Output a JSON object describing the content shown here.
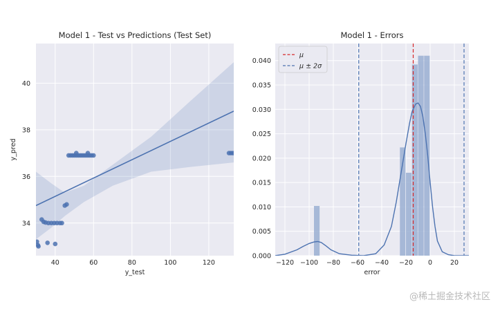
{
  "watermark": "@稀土掘金技术社区",
  "chart_data": [
    {
      "type": "scatter",
      "title": "Model 1 - Test vs Predictions (Test Set)",
      "xlabel": "y_test",
      "ylabel": "y_pred",
      "xlim": [
        30,
        133
      ],
      "ylim": [
        32.6,
        41.7
      ],
      "xticks": [
        40,
        60,
        80,
        100,
        120
      ],
      "yticks": [
        34,
        36,
        38,
        40
      ],
      "grid": true,
      "background": "#eaeaf2",
      "color": "#4c72b0",
      "regression": {
        "x": [
          30,
          133
        ],
        "y": [
          34.75,
          38.8
        ]
      },
      "ci_band": {
        "x": [
          30,
          38,
          45,
          55,
          70,
          90,
          110,
          133
        ],
        "lower": [
          33.3,
          33.8,
          34.3,
          34.9,
          35.6,
          36.2,
          36.4,
          36.6
        ],
        "upper": [
          36.2,
          35.7,
          35.3,
          35.6,
          36.5,
          37.7,
          39.2,
          40.9
        ]
      },
      "points": {
        "x": [
          30.5,
          31,
          31.3,
          33,
          34,
          35,
          36.5,
          38,
          39.5,
          41,
          42.5,
          43.5,
          36,
          40,
          45,
          46,
          47,
          48,
          49,
          50,
          51,
          52,
          53,
          54,
          55,
          56,
          57,
          58,
          59,
          60,
          51,
          57,
          130.5,
          131.5,
          132.5
        ],
        "y": [
          33.2,
          33.05,
          33.0,
          34.15,
          34.05,
          34.02,
          34.0,
          34.0,
          34.0,
          34.0,
          34.0,
          34.0,
          33.15,
          33.1,
          34.75,
          34.8,
          36.9,
          36.9,
          36.9,
          36.9,
          36.9,
          36.9,
          36.9,
          36.9,
          36.9,
          36.9,
          36.9,
          36.9,
          36.9,
          36.9,
          37.0,
          37.0,
          37.0,
          37.0,
          37.0
        ]
      }
    },
    {
      "type": "bar",
      "title": "Model 1  - Errors",
      "xlabel": "error",
      "ylabel": "",
      "xlim": [
        -128,
        32
      ],
      "ylim": [
        0,
        0.0435
      ],
      "xticks": [
        -120,
        -100,
        -80,
        -60,
        -40,
        -20,
        0,
        20
      ],
      "yticks": [
        0.0,
        0.005,
        0.01,
        0.015,
        0.02,
        0.025,
        0.03,
        0.035,
        0.04
      ],
      "ytick_labels": [
        "0.000",
        "0.005",
        "0.010",
        "0.015",
        "0.020",
        "0.025",
        "0.030",
        "0.035",
        "0.040"
      ],
      "grid": true,
      "background": "#eaeaf2",
      "bar_color": "#9aafd2",
      "bins": [
        {
          "x0": -96,
          "x1": -91,
          "value": 0.0102
        },
        {
          "x0": -25,
          "x1": -20,
          "value": 0.0222
        },
        {
          "x0": -20,
          "x1": -15,
          "value": 0.017
        },
        {
          "x0": -15,
          "x1": -10,
          "value": 0.0392
        },
        {
          "x0": -10,
          "x1": -5,
          "value": 0.041
        },
        {
          "x0": -5,
          "x1": 0,
          "value": 0.041
        }
      ],
      "kde": {
        "color": "#4c72b0",
        "x": [
          -128,
          -120,
          -110,
          -105,
          -100,
          -96,
          -93,
          -90,
          -86,
          -82,
          -75,
          -65,
          -55,
          -45,
          -38,
          -32,
          -28,
          -24,
          -20,
          -17,
          -15,
          -12,
          -10,
          -8,
          -6,
          -4,
          -2,
          0,
          2,
          4,
          6,
          10,
          15,
          20,
          25,
          32
        ],
        "y": [
          0.0,
          0.0003,
          0.0012,
          0.0019,
          0.0025,
          0.0028,
          0.0029,
          0.0027,
          0.002,
          0.0012,
          0.0004,
          0.0001,
          0.0,
          0.0004,
          0.0022,
          0.006,
          0.011,
          0.017,
          0.023,
          0.0272,
          0.0295,
          0.0311,
          0.0313,
          0.0306,
          0.0285,
          0.025,
          0.0205,
          0.015,
          0.01,
          0.006,
          0.003,
          0.0008,
          0.0002,
          0.0,
          0.0,
          0.0
        ]
      },
      "lines": [
        {
          "label": "μ",
          "x": -14,
          "color": "#d62728",
          "style": "dashed"
        },
        {
          "label": "μ ± 2σ",
          "x": -59,
          "color": "#4c72b0",
          "style": "dashed"
        },
        {
          "label": "",
          "x": 28,
          "color": "#4c72b0",
          "style": "dashed"
        }
      ],
      "legend": {
        "position": "top-left",
        "entries": [
          {
            "label": "μ",
            "color": "#d62728"
          },
          {
            "label": "μ ± 2σ",
            "color": "#4c72b0"
          }
        ]
      }
    }
  ]
}
